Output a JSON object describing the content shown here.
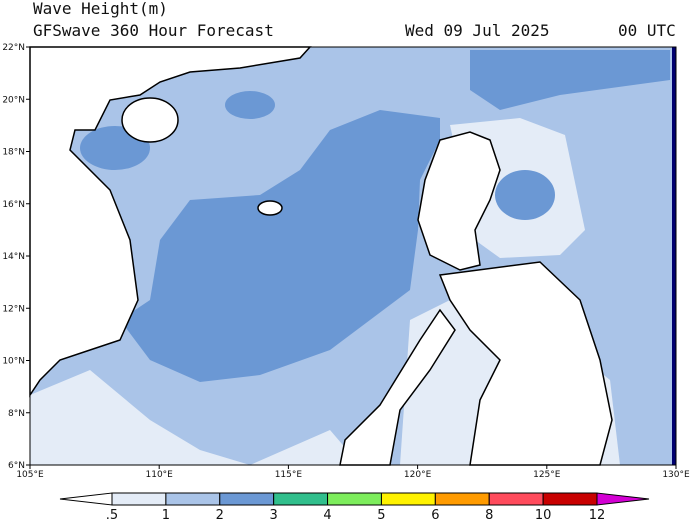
{
  "header": {
    "title": "Wave Height(m)",
    "subtitle": "GFSwave 360 Hour Forecast",
    "date": "Wed 09 Jul 2025",
    "time": "00 UTC"
  },
  "map": {
    "lat_labels": [
      "22°N",
      "20°N",
      "18°N",
      "16°N",
      "14°N",
      "12°N",
      "10°N",
      "8°N",
      "6°N"
    ],
    "lon_labels": [
      "105°E",
      "110°E",
      "115°E",
      "120°E",
      "125°E",
      "130°E"
    ]
  },
  "colorbar": {
    "levels": [
      {
        "value": 0.5,
        "label": ".5"
      },
      1,
      2,
      3,
      4,
      5,
      6,
      8,
      10,
      12
    ],
    "colors": [
      "#ffffff",
      "#e4ecf7",
      "#aac4e8",
      "#6b98d4",
      "#31bf8c",
      "#7ded5c",
      "#fff200",
      "#ff9b00",
      "#ff4b5c",
      "#c80000",
      "#d300d3"
    ]
  }
}
